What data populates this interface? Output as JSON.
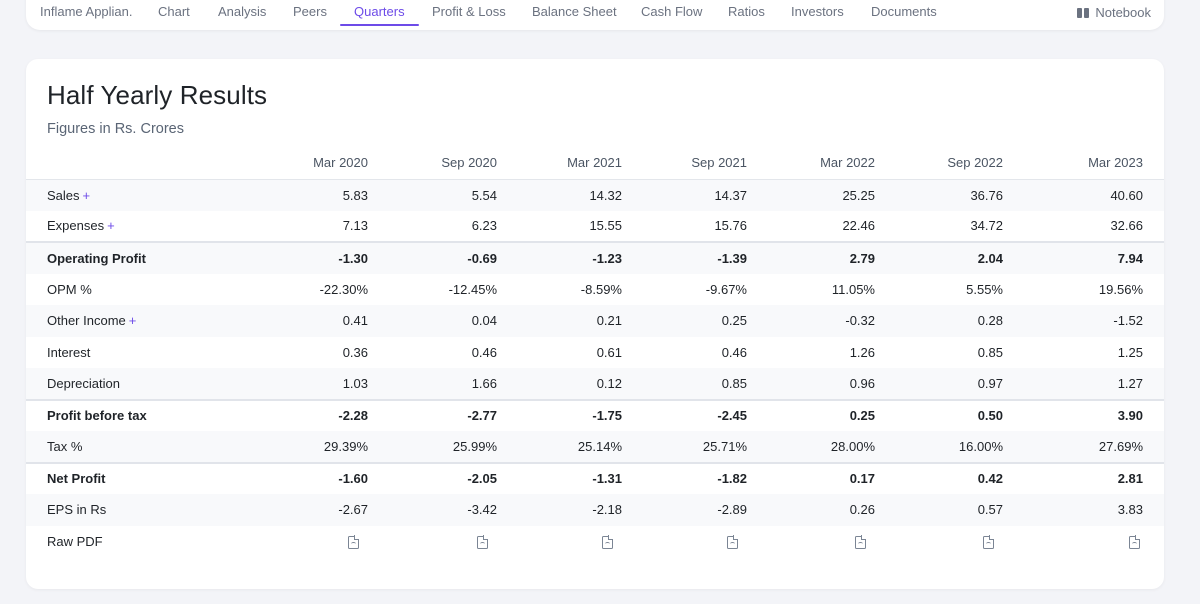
{
  "nav": {
    "items": [
      {
        "label": "Inflame Applian.",
        "name": "nav-company"
      },
      {
        "label": "Chart",
        "name": "nav-chart"
      },
      {
        "label": "Analysis",
        "name": "nav-analysis"
      },
      {
        "label": "Peers",
        "name": "nav-peers"
      },
      {
        "label": "Quarters",
        "name": "nav-quarters"
      },
      {
        "label": "Profit & Loss",
        "name": "nav-profit-loss"
      },
      {
        "label": "Balance Sheet",
        "name": "nav-balance-sheet"
      },
      {
        "label": "Cash Flow",
        "name": "nav-cash-flow"
      },
      {
        "label": "Ratios",
        "name": "nav-ratios"
      },
      {
        "label": "Investors",
        "name": "nav-investors"
      },
      {
        "label": "Documents",
        "name": "nav-documents"
      }
    ],
    "active": "Quarters",
    "notebook_label": "Notebook"
  },
  "section": {
    "title": "Half Yearly Results",
    "subtitle": "Figures in Rs. Crores"
  },
  "table": {
    "periods": [
      "Mar 2020",
      "Sep 2020",
      "Mar 2021",
      "Sep 2021",
      "Mar 2022",
      "Sep 2022",
      "Mar 2023"
    ],
    "rows": [
      {
        "label": "Sales",
        "expandable": true,
        "values": [
          "5.83",
          "5.54",
          "14.32",
          "14.37",
          "25.25",
          "36.76",
          "40.60"
        ]
      },
      {
        "label": "Expenses",
        "expandable": true,
        "values": [
          "7.13",
          "6.23",
          "15.55",
          "15.76",
          "22.46",
          "34.72",
          "32.66"
        ]
      },
      {
        "label": "Operating Profit",
        "expandable": false,
        "values": [
          "-1.30",
          "-0.69",
          "-1.23",
          "-1.39",
          "2.79",
          "2.04",
          "7.94"
        ]
      },
      {
        "label": "OPM %",
        "expandable": false,
        "values": [
          "-22.30%",
          "-12.45%",
          "-8.59%",
          "-9.67%",
          "11.05%",
          "5.55%",
          "19.56%"
        ]
      },
      {
        "label": "Other Income",
        "expandable": true,
        "values": [
          "0.41",
          "0.04",
          "0.21",
          "0.25",
          "-0.32",
          "0.28",
          "-1.52"
        ]
      },
      {
        "label": "Interest",
        "expandable": false,
        "values": [
          "0.36",
          "0.46",
          "0.61",
          "0.46",
          "1.26",
          "0.85",
          "1.25"
        ]
      },
      {
        "label": "Depreciation",
        "expandable": false,
        "values": [
          "1.03",
          "1.66",
          "0.12",
          "0.85",
          "0.96",
          "0.97",
          "1.27"
        ]
      },
      {
        "label": "Profit before tax",
        "expandable": false,
        "values": [
          "-2.28",
          "-2.77",
          "-1.75",
          "-2.45",
          "0.25",
          "0.50",
          "3.90"
        ]
      },
      {
        "label": "Tax %",
        "expandable": false,
        "values": [
          "29.39%",
          "25.99%",
          "25.14%",
          "25.71%",
          "28.00%",
          "16.00%",
          "27.69%"
        ]
      },
      {
        "label": "Net Profit",
        "expandable": false,
        "values": [
          "-1.60",
          "-2.05",
          "-1.31",
          "-1.82",
          "0.17",
          "0.42",
          "2.81"
        ]
      },
      {
        "label": "EPS in Rs",
        "expandable": false,
        "values": [
          "-2.67",
          "-3.42",
          "-2.18",
          "-2.89",
          "0.26",
          "0.57",
          "3.83"
        ]
      }
    ],
    "raw_pdf_label": "Raw PDF",
    "plus_symbol": "+",
    "pdf_icon": "pdf-file-icon"
  },
  "colors": {
    "accent": "#6d4be8",
    "muted_text": "#6b7280",
    "stripe": "#f8f9fb"
  }
}
